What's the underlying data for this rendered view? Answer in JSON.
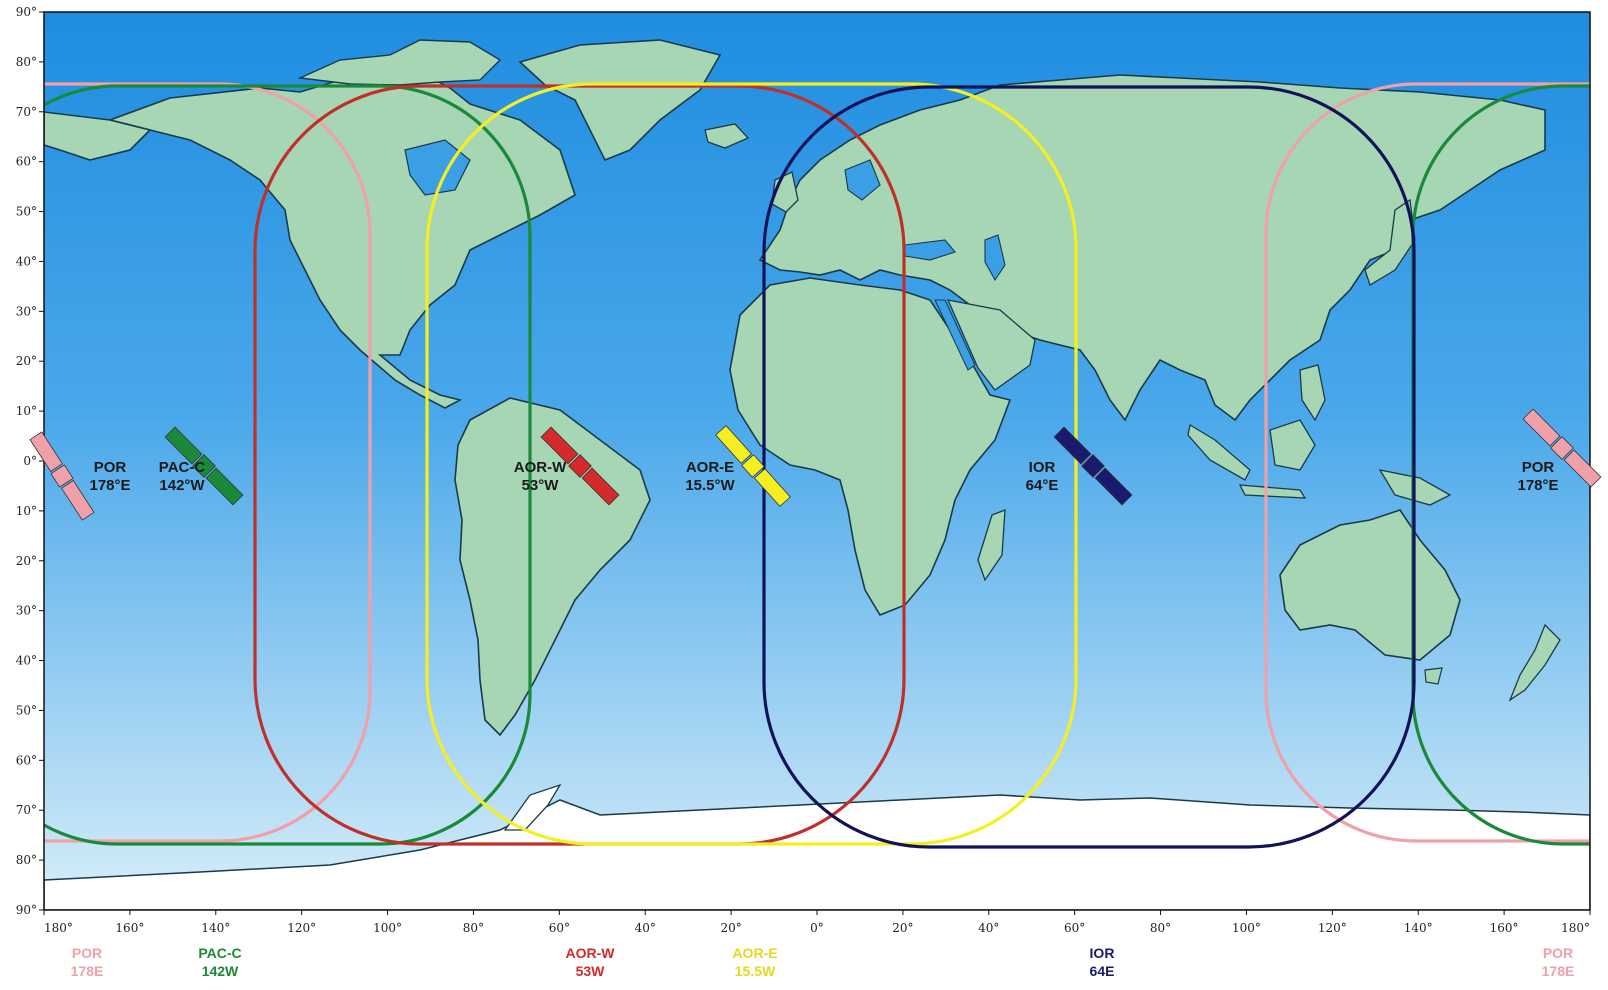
{
  "map": {
    "lat_ticks": [
      "90°",
      "80°",
      "70°",
      "60°",
      "50°",
      "40°",
      "30°",
      "20°",
      "10°",
      "0°",
      "10°",
      "20°",
      "30°",
      "40°",
      "50°",
      "60°",
      "70°",
      "80°",
      "90°"
    ],
    "lon_ticks": [
      "180°",
      "160°",
      "140°",
      "120°",
      "100°",
      "80°",
      "60°",
      "40°",
      "20°",
      "0°",
      "20°",
      "40°",
      "60°",
      "80°",
      "100°",
      "120°",
      "140°",
      "160°",
      "180°"
    ],
    "colors": {
      "ocean_top": "#1f8de0",
      "ocean_bottom": "#d8eef9",
      "land": "#a6d6b4",
      "coast": "#1a3a4a",
      "ice": "#ffffff"
    }
  },
  "satellites": [
    {
      "id": "por-left",
      "line1": "POR",
      "line2": "178°E",
      "color": "#f0a0a8",
      "lon_deg": 178,
      "coverage": "por"
    },
    {
      "id": "pac-c",
      "line1": "PAC-C",
      "line2": "142°W",
      "color": "#1a8a3a",
      "lon_deg": -142,
      "coverage": "pac"
    },
    {
      "id": "aor-w",
      "line1": "AOR-W",
      "line2": "53°W",
      "color": "#d42a2a",
      "lon_deg": -53,
      "coverage": "aorw"
    },
    {
      "id": "aor-e",
      "line1": "AOR-E",
      "line2": "15.5°W",
      "color": "#f5ee20",
      "lon_deg": -15.5,
      "coverage": "aore"
    },
    {
      "id": "ior",
      "line1": "IOR",
      "line2": "64°E",
      "color": "#1a1a6e",
      "lon_deg": 64,
      "coverage": "ior"
    },
    {
      "id": "por-right",
      "line1": "POR",
      "line2": "178°E",
      "color": "#f0a0a8",
      "lon_deg": 178,
      "coverage": "por"
    }
  ],
  "bottom_labels": [
    {
      "id": "por-left",
      "line1": "POR",
      "line2": "178E",
      "color": "#f0a0a8"
    },
    {
      "id": "pac-c",
      "line1": "PAC-C",
      "line2": "142W",
      "color": "#1a8a3a"
    },
    {
      "id": "aor-w",
      "line1": "AOR-W",
      "line2": "53W",
      "color": "#d42a2a"
    },
    {
      "id": "aor-e",
      "line1": "AOR-E",
      "line2": "15.5W",
      "color": "#e6d81c"
    },
    {
      "id": "ior",
      "line1": "IOR",
      "line2": "64E",
      "color": "#1a1a6e"
    },
    {
      "id": "por-right",
      "line1": "POR",
      "line2": "178E",
      "color": "#f0a0a8"
    }
  ]
}
